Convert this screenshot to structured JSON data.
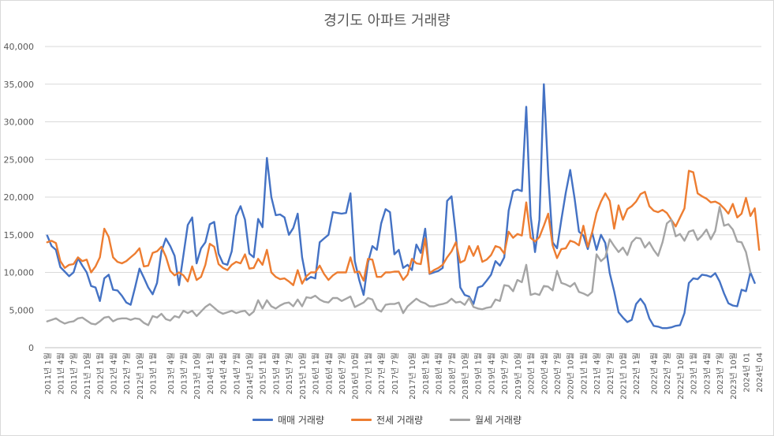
{
  "chart_data": {
    "type": "line",
    "title": "경기도 아파트 거래량",
    "xlabel": "",
    "ylabel": "",
    "ylim": [
      0,
      40000
    ],
    "yticks": [
      0,
      5000,
      10000,
      15000,
      20000,
      25000,
      30000,
      35000,
      40000
    ],
    "ytick_labels": [
      "0",
      "5,000",
      "10,000",
      "15,000",
      "20,000",
      "25,000",
      "30,000",
      "35,000",
      "40,000"
    ],
    "grid": true,
    "legend_position": "bottom",
    "xtick_labels": [
      "2011년 1월",
      "2011년 4월",
      "2011년 7월",
      "2011년 10월",
      "2012년 1월",
      "2012년 4월",
      "2012년 7월",
      "2012년 10월",
      "2013년 1월",
      "2013년 4월",
      "2013년 7월",
      "2013년 10월",
      "2014년 1월",
      "2014년 4월",
      "2014년 7월",
      "2014년 10월",
      "2015년 1월",
      "2015년 4월",
      "2015년 7월",
      "2015년 10월",
      "2016년 1월",
      "2016년 4월",
      "2016년 7월",
      "2016년 10월",
      "2017년 1월",
      "2017년 4월",
      "2017년 7월",
      "2017년 10월",
      "2018년 1월",
      "2018년 4월",
      "2018년 7월",
      "2018년 10월",
      "2019년 1월",
      "2019년 4월",
      "2019년 7월",
      "2019년 10월",
      "2020년 1월",
      "2020년 4월",
      "2020년 7월",
      "2020년 10월",
      "2021년 1월",
      "2021년 4월",
      "2021년 7월",
      "2021년 10월",
      "2022년 1월",
      "2022년 4월",
      "2022년 7월",
      "2022년 10월",
      "2023년 1월",
      "2023년 4월",
      "2023년 7월",
      "2023년 10월",
      "2024년 01",
      "2024년 04"
    ],
    "series": [
      {
        "name": "매매 거래량",
        "color": "#4472C4",
        "values": [
          14900,
          13500,
          13000,
          10700,
          10100,
          9500,
          10000,
          11900,
          10900,
          10000,
          8200,
          8000,
          6200,
          9200,
          9700,
          7700,
          7600,
          6900,
          6000,
          5700,
          8000,
          10500,
          9300,
          8000,
          7100,
          8600,
          12800,
          14500,
          13500,
          12200,
          8300,
          12300,
          16300,
          17300,
          11200,
          13200,
          14000,
          16400,
          16700,
          12500,
          11200,
          11000,
          12800,
          17500,
          18800,
          17000,
          12500,
          12000,
          17100,
          16000,
          25200,
          20000,
          17600,
          17700,
          17300,
          15000,
          15900,
          17800,
          12000,
          9000,
          9400,
          9200,
          14000,
          14500,
          15000,
          18000,
          17900,
          17800,
          17900,
          20500,
          11500,
          9000,
          7000,
          11300,
          13500,
          13000,
          16500,
          18400,
          18000,
          12400,
          13000,
          10600,
          11000,
          10300,
          13700,
          12600,
          15800,
          9800,
          10000,
          10200,
          10600,
          19500,
          20100,
          15000,
          8000,
          7000,
          6800,
          5800,
          8000,
          8200,
          8900,
          9700,
          11500,
          10900,
          12000,
          18200,
          20800,
          21000,
          20800,
          32000,
          17500,
          12700,
          17000,
          35000,
          23000,
          14000,
          13200,
          17000,
          20600,
          23600,
          19800,
          15400,
          14900,
          13100,
          15300,
          13000,
          15000,
          13900,
          9900,
          7500,
          4700,
          4000,
          3400,
          3700,
          5800,
          6500,
          5700,
          3900,
          2900,
          2800,
          2600,
          2600,
          2700,
          2900,
          3000,
          4600,
          8600,
          9200,
          9100,
          9700,
          9600,
          9400,
          9900,
          8800,
          7200,
          5900,
          5600,
          5500,
          7700,
          7500,
          10000,
          8600
        ]
      },
      {
        "name": "전세 거래량",
        "color": "#ED7D31",
        "values": [
          14000,
          14200,
          13900,
          11500,
          10600,
          11000,
          11100,
          12000,
          11500,
          11700,
          10000,
          10800,
          12000,
          15800,
          14700,
          12000,
          11400,
          11200,
          11500,
          12000,
          12500,
          13200,
          10800,
          10900,
          12600,
          12800,
          13400,
          12100,
          10200,
          9600,
          10000,
          9600,
          8800,
          10800,
          9000,
          9400,
          11000,
          13800,
          13400,
          11100,
          10600,
          10300,
          11000,
          11400,
          11200,
          12400,
          10500,
          10600,
          11800,
          11000,
          13000,
          10000,
          9400,
          9100,
          9200,
          8800,
          8300,
          10300,
          8500,
          9500,
          10000,
          10000,
          10900,
          9800,
          9000,
          9600,
          10000,
          10000,
          10000,
          12000,
          10000,
          10100,
          8900,
          11800,
          11700,
          9400,
          9400,
          10000,
          10000,
          10100,
          10100,
          9000,
          9700,
          11800,
          11200,
          11100,
          14500,
          9900,
          10300,
          10600,
          11000,
          12000,
          12800,
          14000,
          11300,
          11600,
          13500,
          12200,
          13500,
          11400,
          11700,
          12300,
          13500,
          13300,
          12500,
          15400,
          14600,
          15100,
          14900,
          19300,
          14600,
          14100,
          14700,
          16200,
          17800,
          13600,
          11900,
          13100,
          13200,
          14200,
          14000,
          13600,
          16200,
          13400,
          15300,
          17900,
          19400,
          20500,
          19500,
          15800,
          18900,
          17000,
          18400,
          18800,
          19400,
          20400,
          20700,
          18800,
          18200,
          18000,
          18300,
          17900,
          17000,
          16100,
          17300,
          18500,
          23500,
          23300,
          20500,
          20100,
          19800,
          19300,
          19400,
          19100,
          18500,
          17800,
          19100,
          17300,
          17800,
          19900,
          17500,
          18500,
          13000
        ]
      },
      {
        "name": "월세 거래량",
        "color": "#A5A5A5",
        "values": [
          3500,
          3700,
          3900,
          3500,
          3200,
          3400,
          3500,
          3900,
          4000,
          3600,
          3200,
          3100,
          3500,
          4000,
          4100,
          3500,
          3800,
          3900,
          3900,
          3700,
          3900,
          3800,
          3300,
          3000,
          4200,
          4000,
          4500,
          3800,
          3600,
          4200,
          4000,
          4900,
          4600,
          4900,
          4200,
          4800,
          5400,
          5800,
          5300,
          4800,
          4500,
          4700,
          4900,
          4600,
          4800,
          4900,
          4300,
          4800,
          6300,
          5200,
          6300,
          5500,
          5200,
          5600,
          5900,
          6000,
          5500,
          6400,
          5500,
          6700,
          6600,
          6900,
          6400,
          6100,
          6000,
          6600,
          6600,
          6200,
          6500,
          6800,
          5400,
          5700,
          6000,
          6600,
          6400,
          5100,
          4800,
          5700,
          5800,
          5800,
          6000,
          4600,
          5500,
          6000,
          6500,
          6100,
          5900,
          5500,
          5500,
          5700,
          5800,
          6000,
          6500,
          6000,
          6100,
          5700,
          6600,
          5400,
          5200,
          5100,
          5300,
          5400,
          6400,
          6200,
          8300,
          8200,
          7500,
          9000,
          8700,
          11000,
          7000,
          7200,
          7000,
          8200,
          8100,
          7600,
          10200,
          8600,
          8400,
          8100,
          8600,
          7400,
          7200,
          6900,
          7400,
          12400,
          11500,
          12000,
          14400,
          13500,
          12700,
          13300,
          12300,
          14000,
          14600,
          14500,
          13300,
          14000,
          13000,
          12200,
          14000,
          16500,
          17000,
          14800,
          15100,
          14200,
          15400,
          15600,
          14300,
          14900,
          15700,
          14400,
          15500,
          18700,
          16200,
          16400,
          15700,
          14100,
          14000,
          12700,
          10000
        ]
      }
    ]
  }
}
